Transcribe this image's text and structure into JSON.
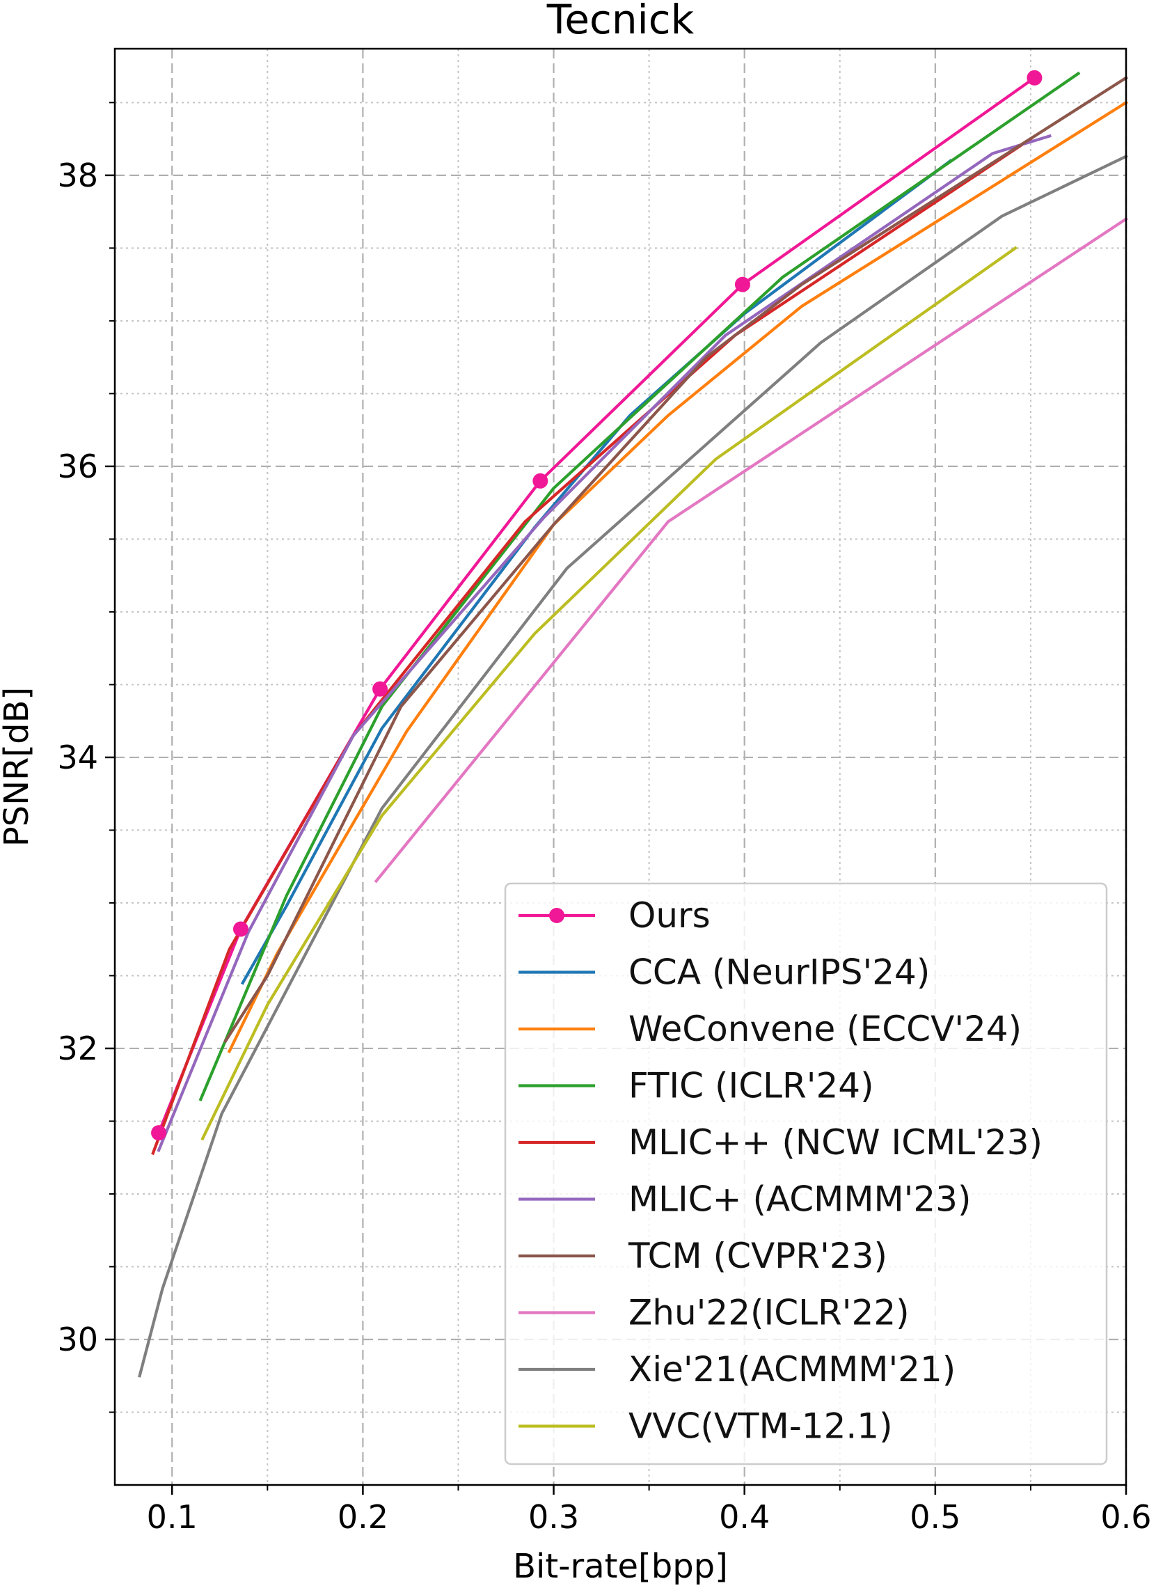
{
  "chart_data": {
    "type": "line",
    "title": "Tecnick",
    "xlabel": "Bit-rate[bpp]",
    "ylabel": "PSNR[dB]",
    "xlim": [
      0.07,
      0.6
    ],
    "ylim": [
      29.0,
      38.87
    ],
    "xticks": [
      0.1,
      0.2,
      0.3,
      0.4,
      0.5,
      0.6
    ],
    "xtick_labels": [
      "0.1",
      "0.2",
      "0.3",
      "0.4",
      "0.5",
      "0.6"
    ],
    "xminor": [
      0.15,
      0.25,
      0.35,
      0.45,
      0.55
    ],
    "yticks": [
      30,
      32,
      34,
      36,
      38
    ],
    "ytick_labels": [
      "30",
      "32",
      "34",
      "36",
      "38"
    ],
    "yminor": [
      29.5,
      30.5,
      31.0,
      31.5,
      32.5,
      33.0,
      33.5,
      34.5,
      35.0,
      35.5,
      36.5,
      37.0,
      37.5,
      38.5
    ],
    "grid": true,
    "legend_position": "lower-right",
    "series": [
      {
        "name": "Ours",
        "color": "#f01896",
        "marker": "circle",
        "x": [
          0.093,
          0.136,
          0.209,
          0.293,
          0.399,
          0.552
        ],
        "y": [
          31.42,
          32.82,
          34.47,
          35.9,
          37.25,
          38.67
        ]
      },
      {
        "name": "CCA (NeurIPS'24)",
        "color": "#1f77b4",
        "marker": "none",
        "x": [
          0.137,
          0.16,
          0.21,
          0.29,
          0.34,
          0.4,
          0.508
        ],
        "y": [
          32.45,
          32.98,
          34.2,
          35.58,
          36.35,
          37.05,
          38.1
        ]
      },
      {
        "name": "WeConvene (ECCV'24)",
        "color": "#ff7f0e",
        "marker": "none",
        "x": [
          0.13,
          0.155,
          0.195,
          0.223,
          0.3,
          0.36,
          0.43,
          0.6
        ],
        "y": [
          31.98,
          32.65,
          33.55,
          34.18,
          35.6,
          36.35,
          37.1,
          38.5
        ]
      },
      {
        "name": "FTIC (ICLR'24)",
        "color": "#2ca02c",
        "marker": "none",
        "x": [
          0.115,
          0.16,
          0.21,
          0.3,
          0.42,
          0.575
        ],
        "y": [
          31.65,
          33.05,
          34.35,
          35.85,
          37.3,
          38.7
        ]
      },
      {
        "name": "MLIC++ (NCW ICML'23)",
        "color": "#d62728",
        "marker": "none",
        "x": [
          0.09,
          0.13,
          0.195,
          0.285,
          0.395,
          0.55
        ],
        "y": [
          31.28,
          32.68,
          34.15,
          35.62,
          36.9,
          38.25
        ]
      },
      {
        "name": "MLIC+ (ACMMM'23)",
        "color": "#9467bd",
        "marker": "none",
        "x": [
          0.093,
          0.14,
          0.195,
          0.295,
          0.39,
          0.53,
          0.56
        ],
        "y": [
          31.3,
          32.8,
          34.15,
          35.65,
          36.9,
          38.15,
          38.27
        ]
      },
      {
        "name": "TCM (CVPR'23)",
        "color": "#8c564b",
        "marker": "none",
        "x": [
          0.128,
          0.15,
          0.22,
          0.3,
          0.38,
          0.43,
          0.6
        ],
        "y": [
          32.05,
          32.5,
          34.35,
          35.6,
          36.75,
          37.25,
          38.67
        ]
      },
      {
        "name": "Zhu'22(ICLR'22)",
        "color": "#e377c2",
        "marker": "none",
        "x": [
          0.207,
          0.36,
          0.6
        ],
        "y": [
          33.15,
          35.62,
          37.7
        ]
      },
      {
        "name": "Xie'21(ACMMM'21)",
        "color": "#7f7f7f",
        "marker": "none",
        "x": [
          0.083,
          0.095,
          0.126,
          0.21,
          0.307,
          0.44,
          0.535,
          0.6
        ],
        "y": [
          29.75,
          30.35,
          31.55,
          33.65,
          35.3,
          36.85,
          37.72,
          38.13
        ]
      },
      {
        "name": "VVC(VTM-12.1)",
        "color": "#bcbd22",
        "marker": "none",
        "x": [
          0.116,
          0.15,
          0.21,
          0.29,
          0.385,
          0.542
        ],
        "y": [
          31.38,
          32.3,
          33.6,
          34.85,
          36.05,
          37.5
        ]
      }
    ]
  }
}
